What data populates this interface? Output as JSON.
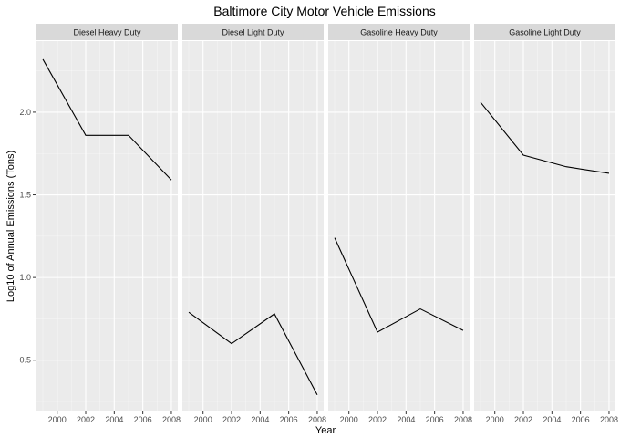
{
  "chart_data": {
    "type": "line",
    "title": "Baltimore City Motor Vehicle Emissions",
    "xlabel": "Year",
    "ylabel": "Log10 of Annual Emissions (Tons)",
    "x": [
      1999,
      2002,
      2005,
      2008
    ],
    "xticks": [
      2000,
      2002,
      2004,
      2006,
      2008
    ],
    "xlim": [
      1998.55,
      2008.45
    ],
    "yticks": [
      0.5,
      1.0,
      1.5,
      2.0
    ],
    "ytick_labels": [
      "0.5",
      "1.0",
      "1.5",
      "2.0"
    ],
    "ylim": [
      0.195,
      2.43
    ],
    "grid": true,
    "facets": [
      {
        "label": "Diesel Heavy Duty",
        "values": [
          2.32,
          1.86,
          1.86,
          1.59
        ]
      },
      {
        "label": "Diesel Light Duty",
        "values": [
          0.79,
          0.6,
          0.78,
          0.29
        ]
      },
      {
        "label": "Gasoline Heavy Duty",
        "values": [
          1.24,
          0.67,
          0.81,
          0.68
        ]
      },
      {
        "label": "Gasoline Light Duty",
        "values": [
          2.06,
          1.74,
          1.67,
          1.63
        ]
      }
    ],
    "colors": {
      "panel_background": "#ebebeb",
      "strip_background": "#d9d9d9",
      "grid_major": "#ffffff",
      "line": "#000000"
    }
  }
}
